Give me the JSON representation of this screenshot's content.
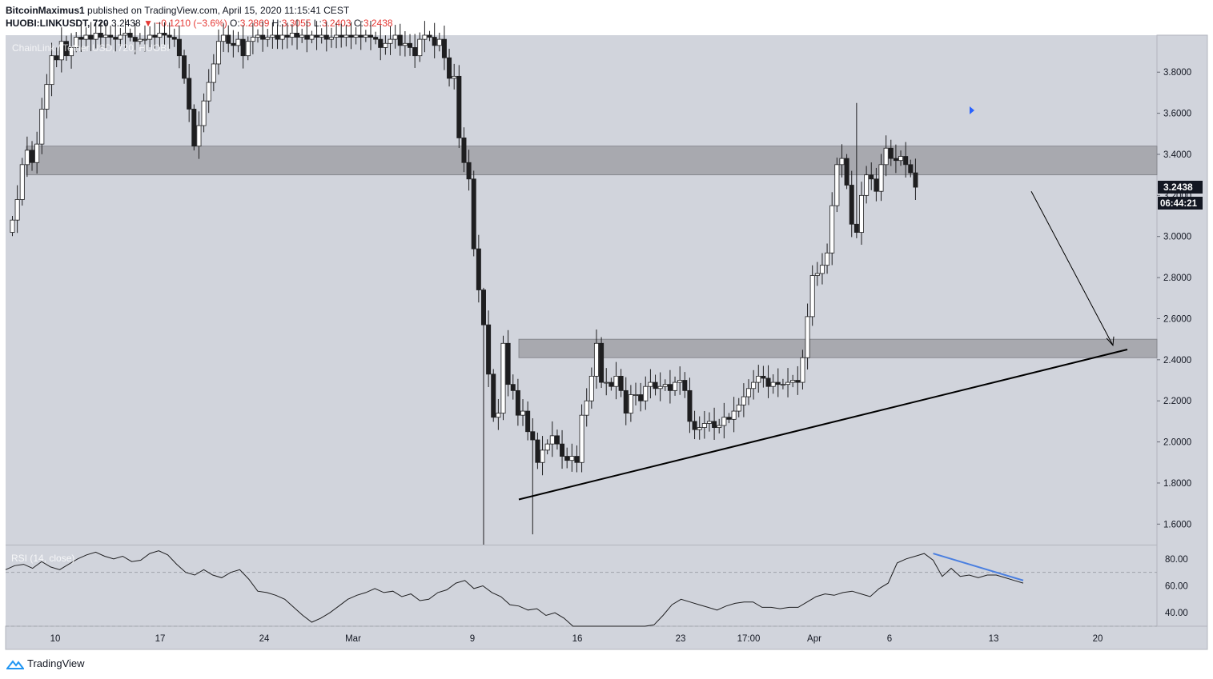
{
  "header": {
    "author": "BitcoinMaximus1",
    "published_text": "published on TradingView.com, April 15, 2020 11:15:41 CEST",
    "symbol": "HUOBI:LINKUSDT, 720",
    "last": "3.2438",
    "change": "▼ −0.1210 (−3.6%)",
    "o_label": "O:",
    "o": "3.2869",
    "h_label": "H:",
    "h": "3.3055",
    "l_label": "L:",
    "l": "3.2403",
    "c_label": "C:",
    "c": "3.2438"
  },
  "footer": {
    "brand": "TradingView"
  },
  "colors": {
    "bg": "#d1d4dc",
    "zone": "#a8a9af",
    "up": "#ffffff",
    "down": "#1e1e20",
    "accent": "#2962ff",
    "rsi_line": "#1e1e20",
    "divergence": "#4a7fe0",
    "price_tag": "#131722"
  },
  "chart_data": {
    "type": "candlestick",
    "title": "ChainLink / Tether USD, 720, HUOBI",
    "y_ticks": [
      "3.8000",
      "3.6000",
      "3.4000",
      "3.2000",
      "3.0000",
      "2.8000",
      "2.6000",
      "2.4000",
      "2.2000",
      "2.0000",
      "1.8000",
      "1.6000"
    ],
    "ylim": [
      1.5,
      3.98
    ],
    "x_ticks": [
      "10",
      "17",
      "24",
      "Mar",
      "9",
      "16",
      "23",
      "17:00",
      "Apr",
      "6",
      "13",
      "20"
    ],
    "current_price": "3.2438",
    "countdown": "06:44:21",
    "zones": [
      {
        "low": 3.3,
        "high": 3.44
      },
      {
        "low": 2.41,
        "high": 2.5
      }
    ],
    "trendline": {
      "from": [
        "Mar 10",
        1.72
      ],
      "to": [
        "Apr 22",
        2.45
      ]
    },
    "projection_arrow": {
      "from": [
        "Apr 14",
        3.22
      ],
      "to": [
        "Apr 21",
        2.47
      ]
    },
    "rsi": {
      "label": "RSI (14, close)",
      "y_ticks": [
        "80.00",
        "60.00",
        "40.00"
      ],
      "ylim": [
        30,
        90
      ],
      "bands": [
        70,
        30
      ],
      "values": [
        72,
        75,
        76,
        73,
        78,
        74,
        72,
        76,
        80,
        83,
        85,
        82,
        80,
        82,
        78,
        79,
        84,
        86,
        83,
        76,
        70,
        68,
        72,
        68,
        66,
        70,
        72,
        65,
        56,
        55,
        53,
        50,
        44,
        38,
        33,
        36,
        40,
        45,
        50,
        53,
        55,
        58,
        55,
        56,
        52,
        54,
        49,
        50,
        55,
        57,
        62,
        64,
        58,
        60,
        55,
        52,
        46,
        45,
        42,
        43,
        38,
        40,
        36,
        30,
        26,
        22,
        18,
        18,
        20,
        22,
        26,
        28,
        31,
        38,
        46,
        50,
        48,
        46,
        44,
        42,
        45,
        47,
        48,
        48,
        44,
        44,
        43,
        44,
        44,
        48,
        52,
        54,
        53,
        55,
        56,
        54,
        52,
        58,
        62,
        77,
        80,
        82,
        84,
        79,
        67,
        73,
        67,
        68,
        66,
        68,
        68,
        66,
        64,
        62
      ],
      "divergence_line": {
        "from_index": 103,
        "from_value": 84,
        "to_index": 113,
        "to_value": 64
      }
    }
  }
}
